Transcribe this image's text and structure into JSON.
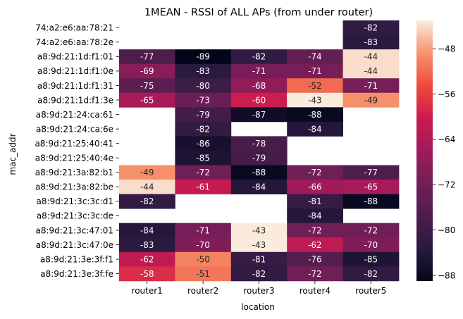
{
  "chart_data": {
    "type": "heatmap",
    "title": "1MEAN - RSSI of ALL APs (from under router)",
    "xlabel": "location",
    "ylabel": "mac_addr",
    "columns": [
      "router1",
      "router2",
      "router3",
      "router4",
      "router5"
    ],
    "rows": [
      "74:a2:e6:aa:78:21",
      "74:a2:e6:aa:78:2e",
      "a8:9d:21:1d:f1:01",
      "a8:9d:21:1d:f1:0e",
      "a8:9d:21:1d:f1:31",
      "a8:9d:21:1d:f1:3e",
      "a8:9d:21:24:ca:61",
      "a8:9d:21:24:ca:6e",
      "a8:9d:21:25:40:41",
      "a8:9d:21:25:40:4e",
      "a8:9d:21:3a:82:b1",
      "a8:9d:21:3a:82:be",
      "a8:9d:21:3c:3c:d1",
      "a8:9d:21:3c:3c:de",
      "a8:9d:21:3c:47:01",
      "a8:9d:21:3c:47:0e",
      "a8:9d:21:3e:3f:f1",
      "a8:9d:21:3e:3f:fe"
    ],
    "values": [
      [
        null,
        null,
        null,
        null,
        -82
      ],
      [
        null,
        null,
        null,
        null,
        -83
      ],
      [
        -77,
        -89,
        -82,
        -74,
        -44
      ],
      [
        -69,
        -83,
        -71,
        -71,
        -44
      ],
      [
        -75,
        -80,
        -68,
        -52,
        -71
      ],
      [
        -65,
        -73,
        -60,
        -43,
        -49
      ],
      [
        null,
        -79,
        -87,
        -88,
        null
      ],
      [
        null,
        -82,
        null,
        -84,
        null
      ],
      [
        null,
        -86,
        -78,
        null,
        null
      ],
      [
        null,
        -85,
        -79,
        null,
        null
      ],
      [
        -49,
        -72,
        -88,
        -72,
        -77
      ],
      [
        -44,
        -61,
        -84,
        -66,
        -65
      ],
      [
        -82,
        null,
        null,
        -81,
        -88
      ],
      [
        null,
        null,
        null,
        -84,
        null
      ],
      [
        -84,
        -71,
        -43,
        -72,
        -72
      ],
      [
        -83,
        -70,
        -43,
        -62,
        -70
      ],
      [
        -62,
        -50,
        -81,
        -76,
        -85
      ],
      [
        -58,
        -51,
        -82,
        -72,
        -82
      ]
    ],
    "colormap": "rocket",
    "vmin": -89,
    "vmax": -43,
    "colorbar_ticks": [
      -48,
      -56,
      -64,
      -72,
      -80,
      -88
    ]
  }
}
